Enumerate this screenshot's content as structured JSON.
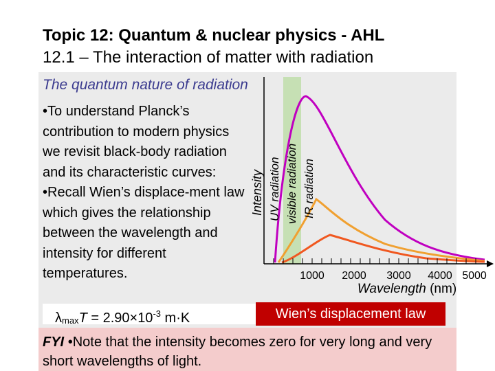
{
  "title": {
    "line1": "Topic 12: Quantum & nuclear physics - AHL",
    "line2": "12.1 – The interaction of matter with radiation"
  },
  "subtitle": "The quantum nature of radiation",
  "bullet1": {
    "marker": "•",
    "text": "To understand Planck’s contribution to modern physics we revisit black-body radiation and its characteristic curves:"
  },
  "bullet2": {
    "marker": "•",
    "text": "Recall Wien’s displace-ment law which gives the relationship between the wavelength and intensity for different temperatures."
  },
  "formula": {
    "lambda": "λ",
    "sub": "max",
    "T": "T",
    "mid": " = 2.90",
    "times": "×",
    "ten": "10",
    "exp": "-3",
    "unit": " m·K"
  },
  "wien_label": "Wien’s displacement law",
  "fyi": {
    "label": "FYI",
    "marker": "•",
    "text": "Note that the intensity becomes zero for very long and very short wavelengths of light."
  },
  "diagram": {
    "y_label": "Intensity",
    "x_label_italic": "Wavelength",
    "x_label_unit": " (nm)",
    "band_labels": [
      "UV radiation",
      "visible radiation",
      "IR radiation"
    ],
    "tick_labels": [
      "1000",
      "2000",
      "3000",
      "4000",
      "5000"
    ],
    "band_color": "#c6e0b4",
    "curve_colors": [
      "#c000c0",
      "#f0a030",
      "#f05820"
    ]
  }
}
